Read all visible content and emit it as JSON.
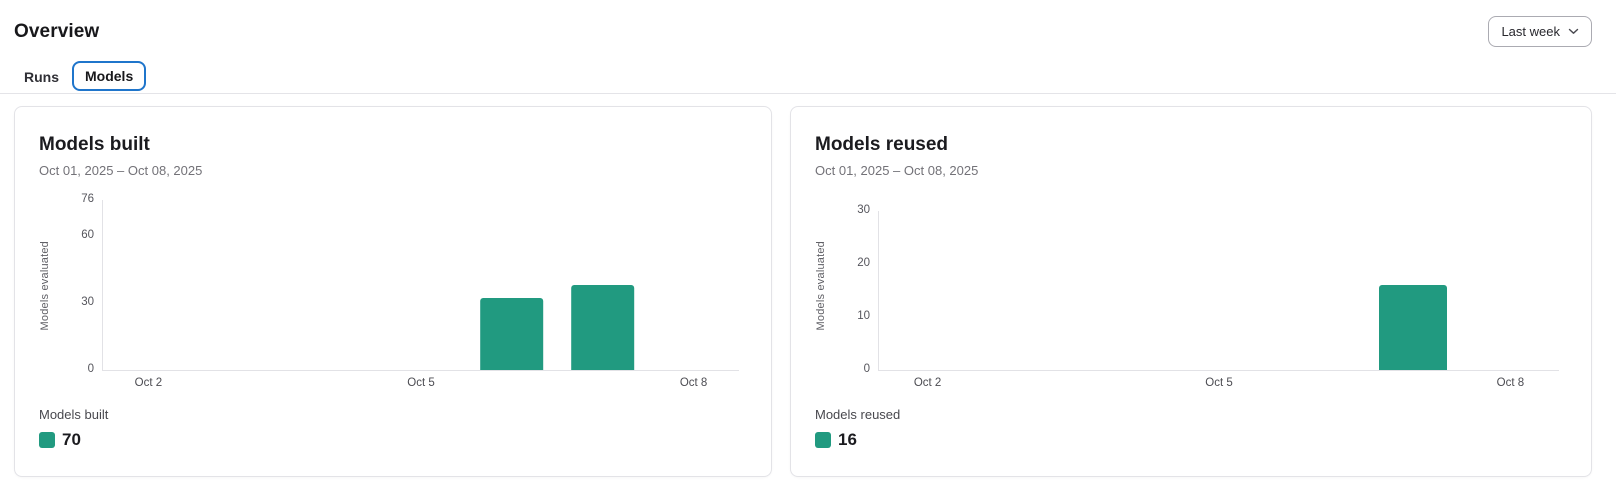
{
  "page": {
    "title": "Overview",
    "time_range": {
      "selected": "Last week"
    },
    "tabs": [
      {
        "label": "Runs",
        "selected": false
      },
      {
        "label": "Models",
        "selected": true
      }
    ]
  },
  "colors": {
    "bar_teal": "#219a80",
    "selected_tab_border": "#1f75cb"
  },
  "chart_data": [
    {
      "type": "bar",
      "title": "Models built",
      "subtitle": "Oct 01, 2025 – Oct 08, 2025",
      "ylabel": "Models evaluated",
      "categories": [
        "Oct 2",
        "Oct 3",
        "Oct 4",
        "Oct 5",
        "Oct 6",
        "Oct 7",
        "Oct 8"
      ],
      "values": [
        0,
        0,
        0,
        0,
        32,
        38,
        0
      ],
      "xtick_labels": [
        "Oct 2",
        "Oct 5",
        "Oct 8"
      ],
      "yticks": [
        0,
        30,
        60,
        76
      ],
      "ylim": [
        0,
        76
      ],
      "grid": false,
      "bar_color": "#219a80",
      "legend_position": "bottom-left",
      "legend": {
        "label": "Models built",
        "total": 70
      }
    },
    {
      "type": "bar",
      "title": "Models reused",
      "subtitle": "Oct 01, 2025 – Oct 08, 2025",
      "ylabel": "Models evaluated",
      "categories": [
        "Oct 2",
        "Oct 3",
        "Oct 4",
        "Oct 5",
        "Oct 6",
        "Oct 7",
        "Oct 8"
      ],
      "values": [
        0,
        0,
        0,
        0,
        0,
        16,
        0
      ],
      "xtick_labels": [
        "Oct 2",
        "Oct 5",
        "Oct 8"
      ],
      "yticks": [
        0,
        10,
        20,
        30
      ],
      "ylim": [
        0,
        30
      ],
      "grid": false,
      "bar_color": "#219a80",
      "legend_position": "bottom-left",
      "legend": {
        "label": "Models reused",
        "total": 16
      }
    }
  ]
}
